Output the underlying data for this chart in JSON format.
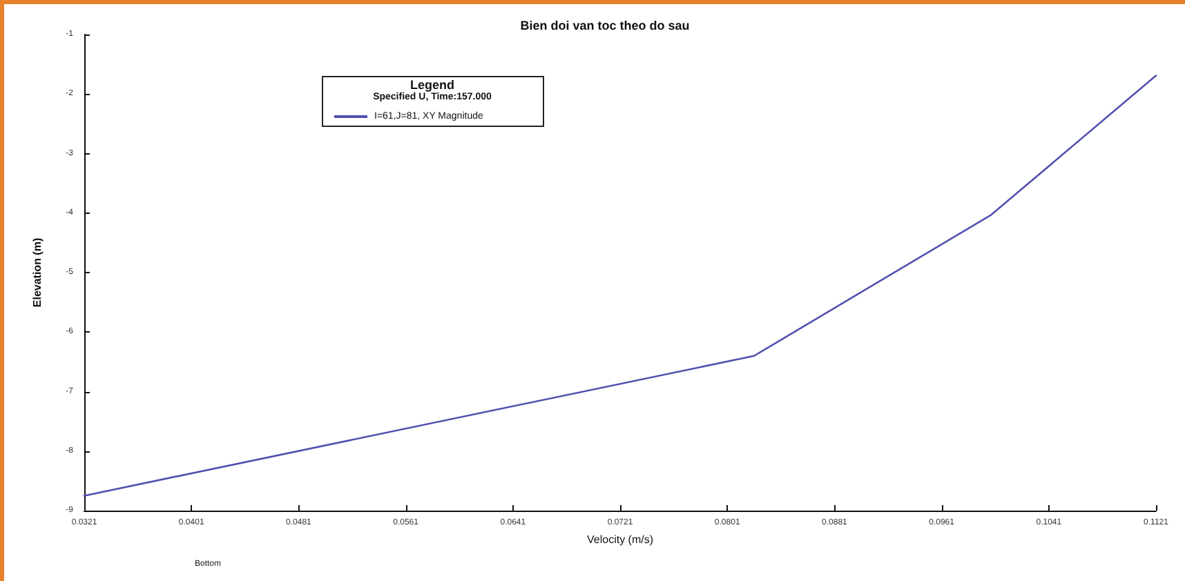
{
  "chart_data": {
    "type": "line",
    "title": "Bien doi van toc theo do sau",
    "xlabel": "Velocity (m/s)",
    "ylabel": "Elevation (m)",
    "legend_title": "Legend",
    "annotations": [
      "Specified U, Time:157.000",
      "Bottom"
    ],
    "x": [
      0.0321,
      0.0821,
      0.0998,
      0.1121
    ],
    "series": [
      {
        "name": "I=61,J=81, XY Magnitude",
        "color": "#5050b0",
        "values": [
          -8.75,
          -6.4,
          -4.03,
          -1.69
        ]
      }
    ],
    "xlim": [
      0.0321,
      0.1121
    ],
    "xticks": [
      0.0321,
      0.0401,
      0.0481,
      0.0561,
      0.0641,
      0.0721,
      0.0801,
      0.0881,
      0.0961,
      0.1041,
      0.1121
    ],
    "ylim": [
      -9,
      -1
    ],
    "yticks": [
      -9,
      -8,
      -7,
      -6,
      -5,
      -4,
      -3,
      -2,
      -1
    ],
    "grid": false,
    "legend": "top left",
    "marker": "none",
    "line_style": "solid"
  }
}
